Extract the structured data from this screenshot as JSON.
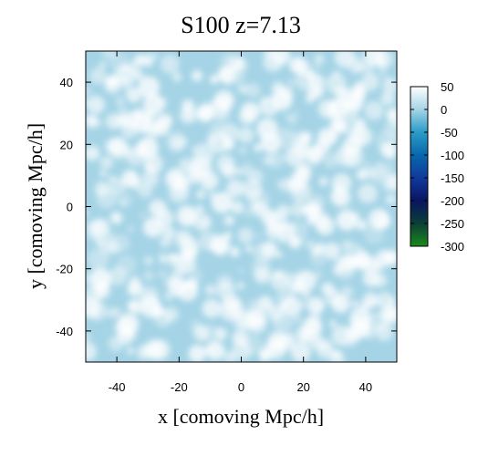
{
  "chart_data": {
    "type": "heatmap",
    "title": "S100 z=7.13",
    "xlabel": "x [comoving Mpc/h]",
    "ylabel": "y [comoving Mpc/h]",
    "xlim": [
      -50,
      50
    ],
    "ylim": [
      -50,
      50
    ],
    "xticks": [
      -40,
      -20,
      0,
      20,
      40
    ],
    "yticks": [
      -40,
      -20,
      0,
      20,
      40
    ],
    "grid": false,
    "colorbar": {
      "range": [
        -300,
        50
      ],
      "ticks": [
        50,
        0,
        -50,
        -100,
        -150,
        -200,
        -250,
        -300
      ],
      "colors": [
        {
          "value": 50,
          "color": "#ffffff"
        },
        {
          "value": 0,
          "color": "#a5d4e6"
        },
        {
          "value": -50,
          "color": "#2b9bc8"
        },
        {
          "value": -100,
          "color": "#0868ac"
        },
        {
          "value": -150,
          "color": "#103a9c"
        },
        {
          "value": -200,
          "color": "#0a1560"
        },
        {
          "value": -250,
          "color": "#0b3f36"
        },
        {
          "value": -300,
          "color": "#1a8a1a"
        }
      ]
    },
    "field_description_values": {
      "background_level": 0,
      "peak_level": 50
    }
  }
}
